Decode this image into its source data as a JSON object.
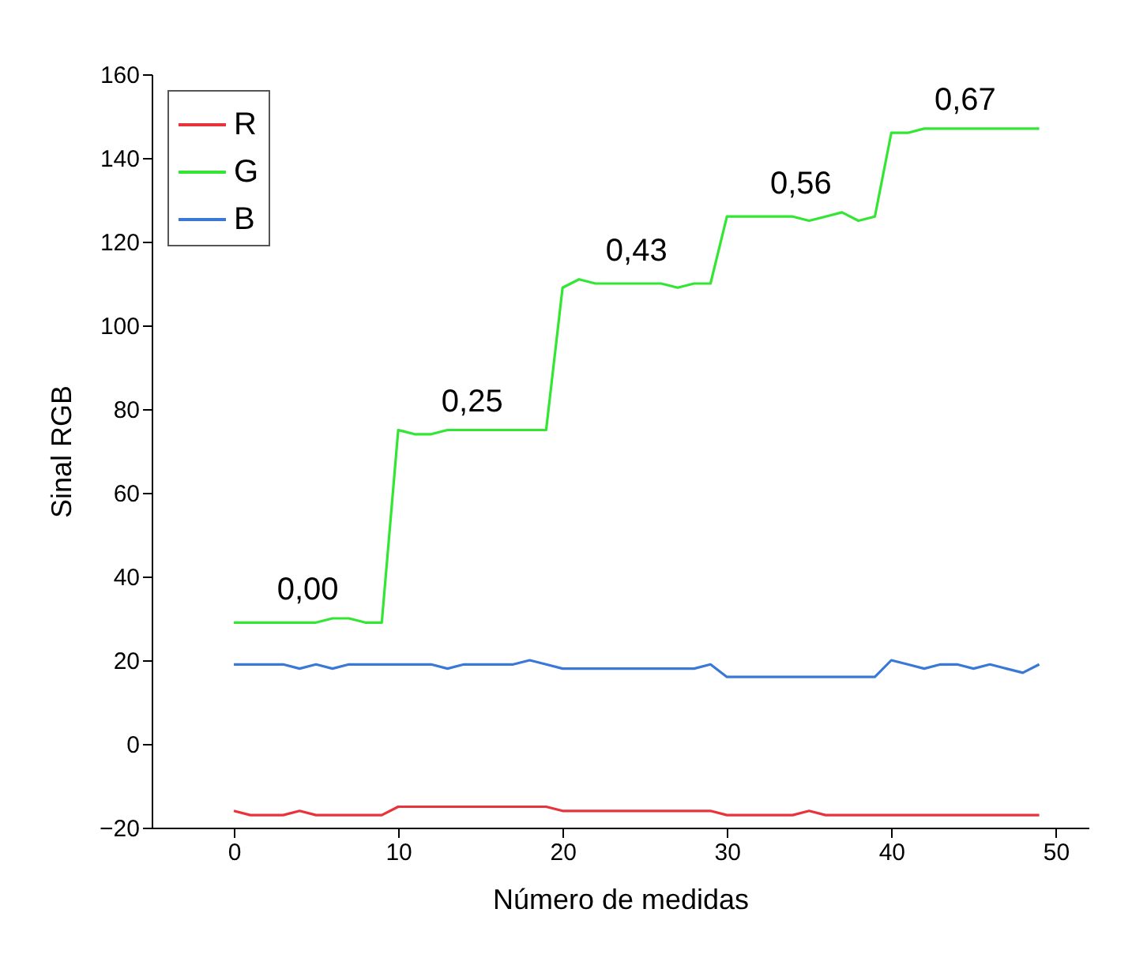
{
  "chart_data": {
    "type": "line",
    "xlabel": "Número de medidas",
    "ylabel": "Sinal RGB",
    "x": [
      0,
      1,
      2,
      3,
      4,
      5,
      6,
      7,
      8,
      9,
      10,
      11,
      12,
      13,
      14,
      15,
      16,
      17,
      18,
      19,
      20,
      21,
      22,
      23,
      24,
      25,
      26,
      27,
      28,
      29,
      30,
      31,
      32,
      33,
      34,
      35,
      36,
      37,
      38,
      39,
      40,
      41,
      42,
      43,
      44,
      45,
      46,
      47,
      48,
      49
    ],
    "series": [
      {
        "name": "R",
        "color": "#e8333a",
        "values": [
          -16,
          -17,
          -17,
          -17,
          -16,
          -17,
          -17,
          -17,
          -17,
          -17,
          -15,
          -15,
          -15,
          -15,
          -15,
          -15,
          -15,
          -15,
          -15,
          -15,
          -16,
          -16,
          -16,
          -16,
          -16,
          -16,
          -16,
          -16,
          -16,
          -16,
          -17,
          -17,
          -17,
          -17,
          -17,
          -16,
          -17,
          -17,
          -17,
          -17,
          -17,
          -17,
          -17,
          -17,
          -17,
          -17,
          -17,
          -17,
          -17,
          -17
        ]
      },
      {
        "name": "G",
        "color": "#33e633",
        "values": [
          29,
          29,
          29,
          29,
          29,
          29,
          30,
          30,
          29,
          29,
          75,
          74,
          74,
          75,
          75,
          75,
          75,
          75,
          75,
          75,
          109,
          111,
          110,
          110,
          110,
          110,
          110,
          109,
          110,
          110,
          126,
          126,
          126,
          126,
          126,
          125,
          126,
          127,
          125,
          126,
          146,
          146,
          147,
          147,
          147,
          147,
          147,
          147,
          147,
          147
        ]
      },
      {
        "name": "B",
        "color": "#3a78d8",
        "values": [
          19,
          19,
          19,
          19,
          18,
          19,
          18,
          19,
          19,
          19,
          19,
          19,
          19,
          18,
          19,
          19,
          19,
          19,
          20,
          19,
          18,
          18,
          18,
          18,
          18,
          18,
          18,
          18,
          18,
          19,
          16,
          16,
          16,
          16,
          16,
          16,
          16,
          16,
          16,
          16,
          20,
          19,
          18,
          19,
          19,
          18,
          19,
          18,
          17,
          19
        ]
      }
    ],
    "xlim": [
      -5,
      52
    ],
    "xticks": [
      0,
      10,
      20,
      30,
      40,
      50
    ],
    "ylim": [
      -20,
      160
    ],
    "yticks": [
      -20,
      0,
      20,
      40,
      60,
      80,
      100,
      120,
      140,
      160
    ],
    "grid": false,
    "legend": "top left",
    "line_style": "solid",
    "marker": "none",
    "annotations": [
      "0,00",
      "0,25",
      "0,43",
      "0,56",
      "0,67"
    ]
  }
}
